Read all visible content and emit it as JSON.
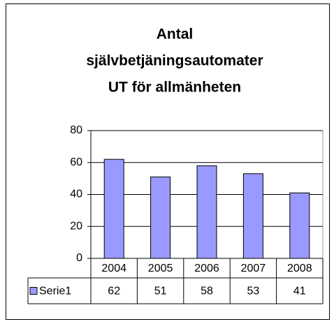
{
  "chart_data": {
    "type": "bar",
    "title": [
      "Antal",
      "självbetjäningsautomater",
      "UT för allmänheten"
    ],
    "categories": [
      "2004",
      "2005",
      "2006",
      "2007",
      "2008"
    ],
    "series": [
      {
        "name": "Serie1",
        "color": "#9999ff",
        "values": [
          62,
          51,
          58,
          53,
          41
        ]
      }
    ],
    "ylim": [
      0,
      80
    ],
    "yticks": [
      0,
      20,
      40,
      60,
      80
    ],
    "grid": true
  }
}
